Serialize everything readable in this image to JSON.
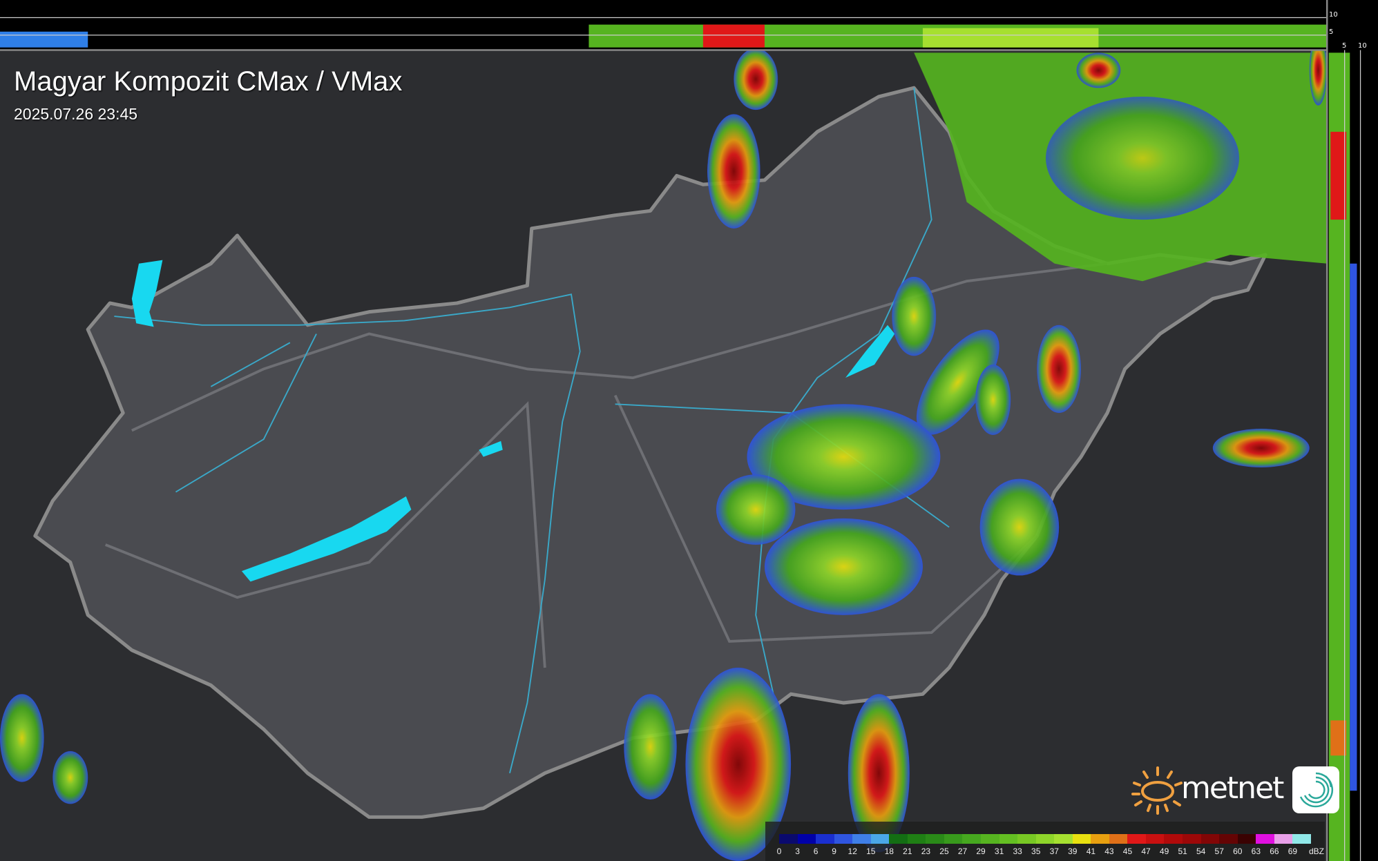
{
  "header": {
    "title": "Magyar Kompozit CMax / VMax",
    "timestamp": "2025.07.26 23:45"
  },
  "profile_axes": {
    "top_strip_labels": [
      "10",
      "5"
    ],
    "right_strip_labels": [
      "5",
      "10"
    ]
  },
  "legend": {
    "unit": "dBZ",
    "labels": [
      "0",
      "3",
      "6",
      "9",
      "12",
      "15",
      "18",
      "21",
      "23",
      "25",
      "27",
      "29",
      "31",
      "33",
      "35",
      "37",
      "39",
      "41",
      "43",
      "45",
      "47",
      "49",
      "51",
      "54",
      "57",
      "60",
      "63",
      "66",
      "69"
    ],
    "colors": [
      "#0a0a6e",
      "#0000a8",
      "#1a2fd0",
      "#2f55e0",
      "#3f7fe8",
      "#4aa8e8",
      "#136e13",
      "#1f7f14",
      "#2a8a18",
      "#389a1c",
      "#46a81f",
      "#56b420",
      "#64bf22",
      "#78c824",
      "#8ed52a",
      "#a6e030",
      "#e8e010",
      "#e8a010",
      "#e07018",
      "#e01818",
      "#c81010",
      "#b00a0a",
      "#9c0808",
      "#820606",
      "#640404",
      "#3a0202",
      "#e010e0",
      "#e8a0e8",
      "#90e8e8"
    ]
  },
  "logo": {
    "text": "metnet",
    "sun_color": "#f0a040",
    "swirl_color": "#2aa89a"
  },
  "colors": {
    "border": "#8a8a8a",
    "rivers": "#3aa8c8",
    "lakes": "#18d8f0",
    "country_fill": "#4a4b50"
  }
}
